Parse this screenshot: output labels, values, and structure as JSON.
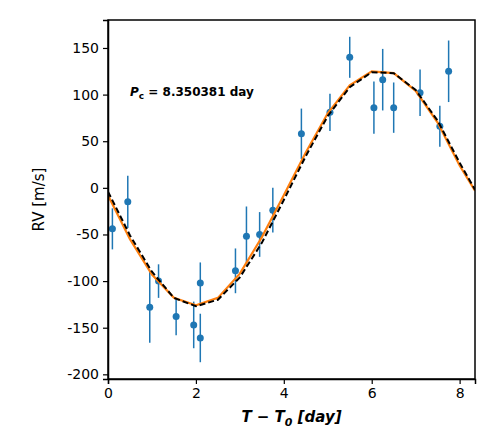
{
  "chart_data": {
    "type": "scatter",
    "xlabel": [
      "T − T",
      "0",
      " [day]"
    ],
    "ylabel": "RV [m/s]",
    "annotation": [
      "P",
      "c",
      " = 8.350381 day"
    ],
    "xlim": [
      0,
      8.35
    ],
    "ylim": [
      -205,
      180
    ],
    "xticks": [
      0,
      2,
      4,
      6,
      8
    ],
    "yticks": [
      -200,
      -150,
      -100,
      -50,
      0,
      50,
      100,
      150
    ],
    "series": [
      {
        "type": "scatter",
        "color": "#1f77b4",
        "marker": "circle",
        "x": [
          0.1,
          0.45,
          0.95,
          1.15,
          1.55,
          1.95,
          2.1,
          2.1,
          2.9,
          3.15,
          3.45,
          3.75,
          4.4,
          5.05,
          5.5,
          6.05,
          6.25,
          6.5,
          7.1,
          7.55,
          7.75
        ],
        "values": [
          -44,
          -15,
          -128,
          -100,
          -138,
          -147,
          -102,
          -161,
          -89,
          -52,
          -50,
          -24,
          58,
          81,
          140,
          86,
          116,
          86,
          102,
          66,
          125
        ],
        "errors": [
          22,
          28,
          38,
          18,
          20,
          25,
          22,
          26,
          24,
          32,
          24,
          24,
          27,
          20,
          22,
          28,
          33,
          27,
          25,
          22,
          33
        ]
      },
      {
        "type": "line",
        "color": "#ff7f0e",
        "line_style": "solid",
        "x": [
          0,
          0.5,
          1,
          1.5,
          2,
          2.5,
          3,
          3.5,
          4,
          4.5,
          5,
          5.5,
          6,
          6.5,
          7,
          7.5,
          8,
          8.35
        ],
        "values": [
          -8,
          -55,
          -93,
          -118,
          -126,
          -118,
          -92,
          -53,
          -8,
          38,
          80,
          110,
          125,
          123,
          104,
          70,
          24,
          -3
        ]
      },
      {
        "type": "line",
        "color": "#000000",
        "line_style": "dashed",
        "x": [
          0,
          0.5,
          1,
          1.5,
          2,
          2.5,
          3,
          3.5,
          4,
          4.5,
          5,
          5.5,
          6,
          6.5,
          7,
          7.5,
          8,
          8.35
        ],
        "values": [
          -4,
          -51,
          -90,
          -118,
          -127,
          -120,
          -96,
          -59,
          -13,
          34,
          77,
          108,
          124,
          123,
          105,
          72,
          27,
          -2
        ]
      }
    ]
  }
}
